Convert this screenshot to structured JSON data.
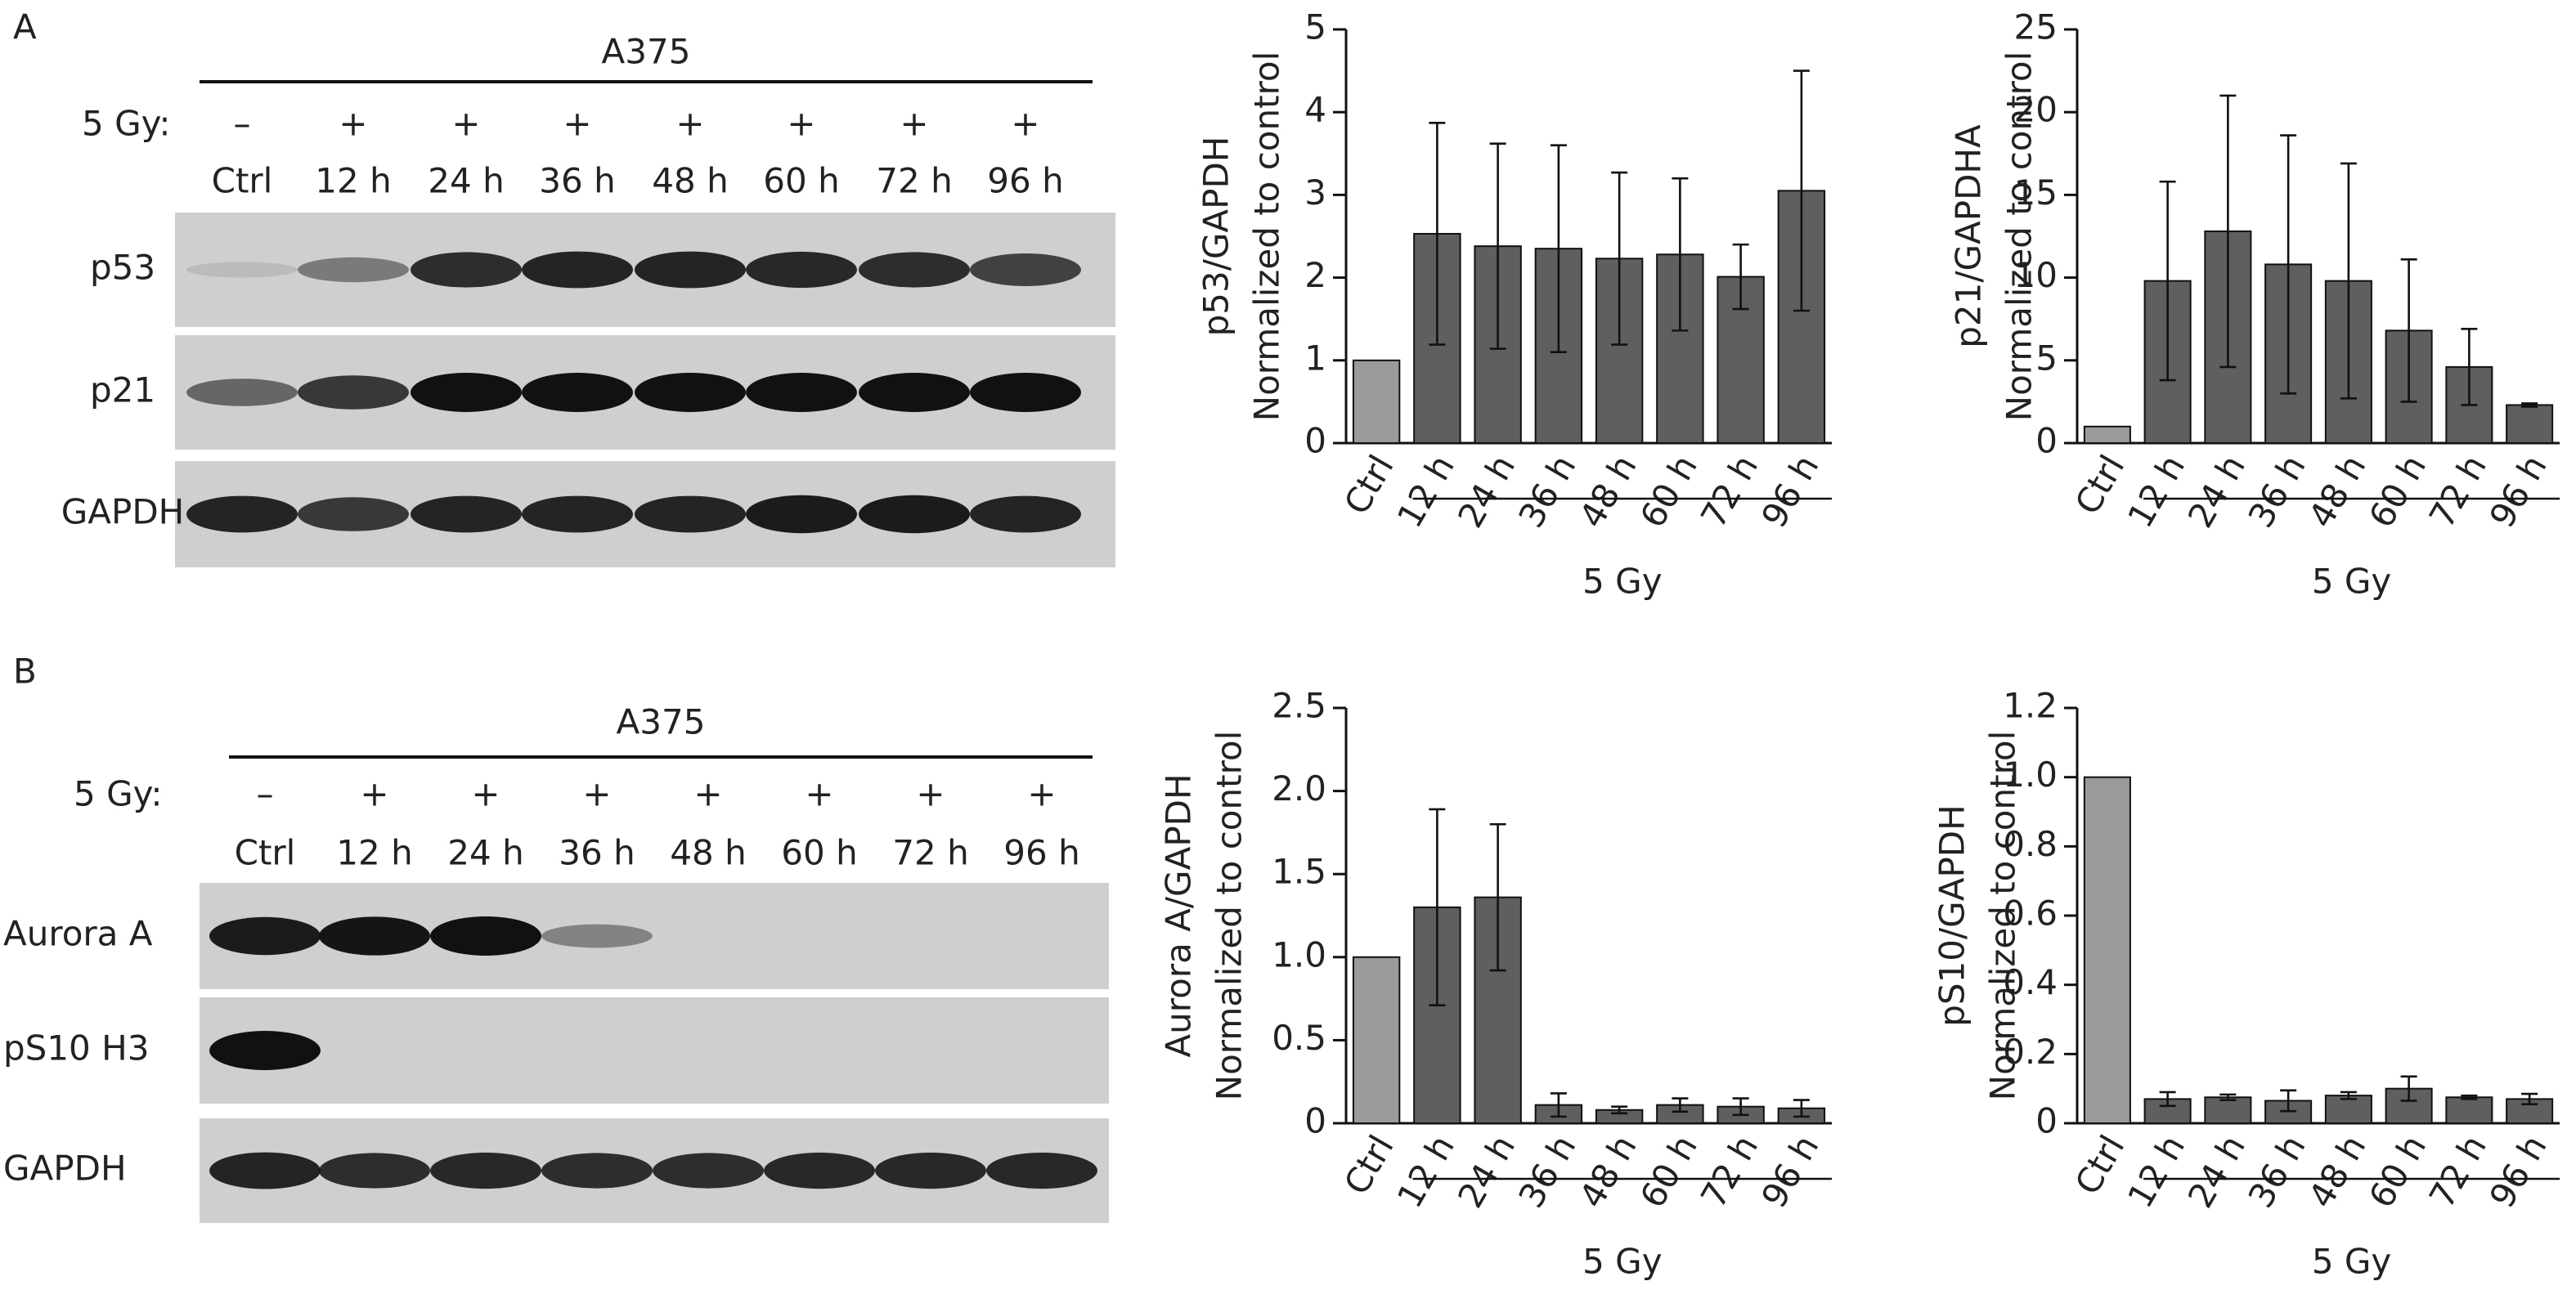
{
  "blots": {
    "panels": [
      {
        "label": "A",
        "cell_line": "A375",
        "dose_label": "5 Gy:",
        "treatment": [
          "–",
          "+",
          "+",
          "+",
          "+",
          "+",
          "+",
          "+"
        ],
        "lanes": [
          "Ctrl",
          "12 h",
          "24 h",
          "36 h",
          "48 h",
          "60 h",
          "72 h",
          "96 h"
        ],
        "rows": [
          "p53",
          "p21",
          "GAPDH"
        ]
      },
      {
        "label": "B",
        "cell_line": "A375",
        "dose_label": "5 Gy:",
        "treatment": [
          "–",
          "+",
          "+",
          "+",
          "+",
          "+",
          "+",
          "+"
        ],
        "lanes": [
          "Ctrl",
          "12 h",
          "24 h",
          "36 h",
          "48 h",
          "60 h",
          "72 h",
          "96 h"
        ],
        "rows": [
          "Aurora A",
          "pS10 H3",
          "GAPDH"
        ]
      }
    ]
  },
  "chart_data": [
    {
      "type": "bar",
      "ylabel": [
        "p53/GAPDH",
        "Normalized to control"
      ],
      "categories": [
        "Ctrl",
        "12 h",
        "24 h",
        "36 h",
        "48 h",
        "60 h",
        "72 h",
        "96 h"
      ],
      "values": [
        1,
        2.53,
        2.38,
        2.35,
        2.23,
        2.28,
        2.01,
        3.05
      ],
      "errors": [
        null,
        1.34,
        1.24,
        1.25,
        1.04,
        0.92,
        0.39,
        1.45
      ],
      "colors": [
        "#9a9a9a",
        "#5f5f5f",
        "#5f5f5f",
        "#5f5f5f",
        "#5f5f5f",
        "#5f5f5f",
        "#5f5f5f",
        "#5f5f5f"
      ],
      "group_label": "5 Gy",
      "ylim": [
        0,
        5
      ],
      "yticks": [
        0,
        1,
        2,
        3,
        4,
        5
      ]
    },
    {
      "type": "bar",
      "ylabel": [
        "p21/GAPDHA",
        "Normalized to control"
      ],
      "categories": [
        "Ctrl",
        "12 h",
        "24 h",
        "36 h",
        "48 h",
        "60 h",
        "72 h",
        "96 h"
      ],
      "values": [
        1,
        9.8,
        12.8,
        10.8,
        9.8,
        6.8,
        4.6,
        2.3
      ],
      "errors": [
        null,
        6.0,
        8.2,
        7.8,
        7.1,
        4.3,
        2.3,
        0.1
      ],
      "colors": [
        "#9a9a9a",
        "#5f5f5f",
        "#5f5f5f",
        "#5f5f5f",
        "#5f5f5f",
        "#5f5f5f",
        "#5f5f5f",
        "#5f5f5f"
      ],
      "group_label": "5 Gy",
      "ylim": [
        0,
        25
      ],
      "yticks": [
        0,
        5,
        10,
        15,
        20,
        25
      ]
    },
    {
      "type": "bar",
      "ylabel": [
        "Aurora A/GAPDH",
        "Normalized to control"
      ],
      "categories": [
        "Ctrl",
        "12 h",
        "24 h",
        "36 h",
        "48 h",
        "60 h",
        "72 h",
        "96 h"
      ],
      "values": [
        1,
        1.3,
        1.36,
        0.11,
        0.08,
        0.11,
        0.1,
        0.09
      ],
      "errors": [
        null,
        0.59,
        0.44,
        0.07,
        0.02,
        0.04,
        0.05,
        0.05
      ],
      "colors": [
        "#9a9a9a",
        "#5f5f5f",
        "#5f5f5f",
        "#5f5f5f",
        "#5f5f5f",
        "#5f5f5f",
        "#5f5f5f",
        "#5f5f5f"
      ],
      "group_label": "5 Gy",
      "ylim": [
        0,
        2.5
      ],
      "yticks": [
        0,
        0.5,
        {
          "value": 1,
          "label": "1.0"
        },
        1.5,
        {
          "value": 2,
          "label": "2.0"
        },
        2.5
      ]
    },
    {
      "type": "bar",
      "ylabel": [
        "pS10/GAPDH",
        "Normalized to control"
      ],
      "categories": [
        "Ctrl",
        "12 h",
        "24 h",
        "36 h",
        "48 h",
        "60 h",
        "72 h",
        "96 h"
      ],
      "values": [
        1,
        0.07,
        0.075,
        0.065,
        0.08,
        0.1,
        0.075,
        0.07
      ],
      "errors": [
        null,
        0.02,
        0.008,
        0.03,
        0.01,
        0.035,
        0.005,
        0.015
      ],
      "colors": [
        "#9a9a9a",
        "#5f5f5f",
        "#5f5f5f",
        "#5f5f5f",
        "#5f5f5f",
        "#5f5f5f",
        "#5f5f5f",
        "#5f5f5f"
      ],
      "group_label": "5 Gy",
      "ylim": [
        0,
        1.2
      ],
      "yticks": [
        0,
        0.2,
        0.4,
        0.6,
        0.8,
        {
          "value": 1,
          "label": "1.0"
        },
        1.2
      ]
    }
  ]
}
